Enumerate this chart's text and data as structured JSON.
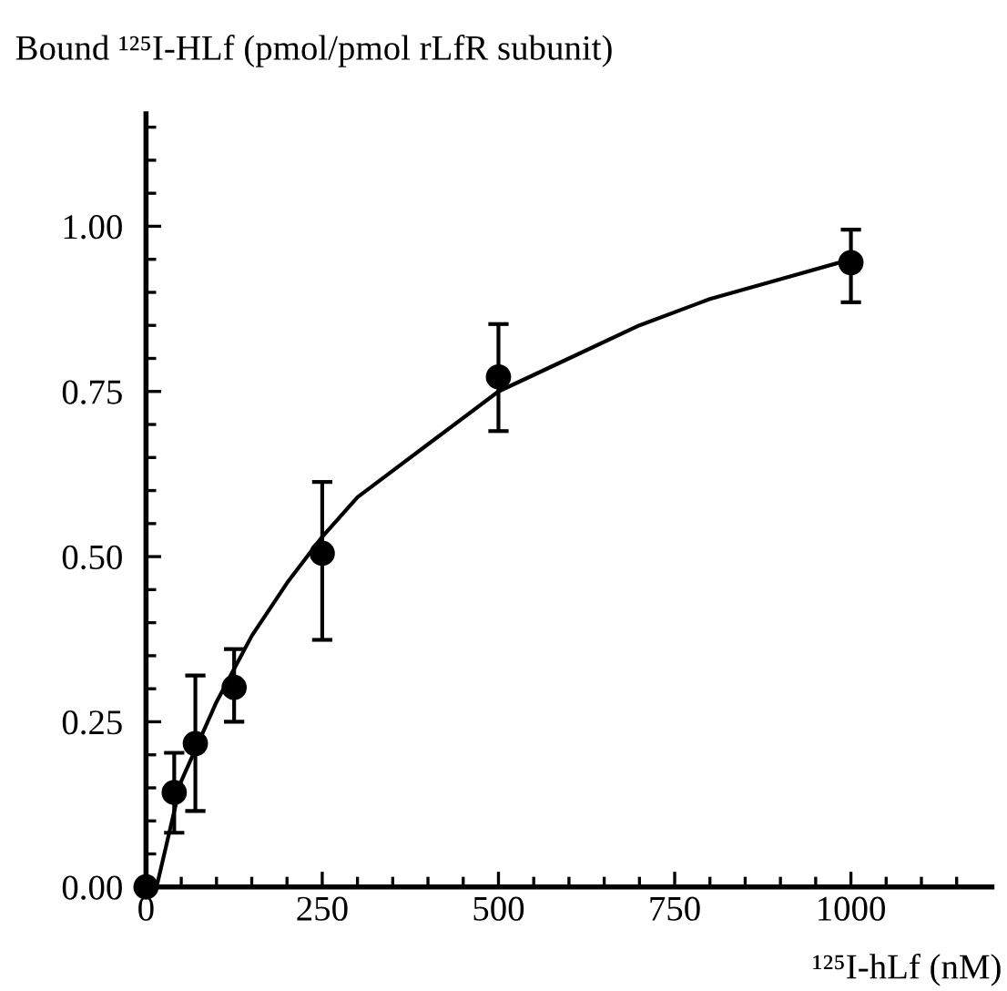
{
  "chart_data": {
    "type": "scatter",
    "xlabel": "¹²⁵I-hLf (nM)",
    "ylabel": "Bound ¹²⁵I-HLf (pmol/pmol rLfR subunit)",
    "series": [
      {
        "color": "#000000",
        "marker": "circle",
        "x": [
          0,
          40,
          70,
          125,
          250,
          500,
          1000
        ],
        "values": [
          0.0,
          0.143,
          0.217,
          0.302,
          0.505,
          0.772,
          0.945
        ],
        "errors": [
          null,
          [
            0.082,
            0.203
          ],
          [
            0.115,
            0.32
          ],
          [
            0.25,
            0.36
          ],
          [
            0.374,
            0.613
          ],
          [
            0.69,
            0.852
          ],
          [
            0.885,
            0.995
          ]
        ]
      },
      {
        "type": "line",
        "color": "#000000",
        "line_style": "solid",
        "x": [
          15,
          50,
          100,
          150,
          200,
          250,
          300,
          400,
          500,
          600,
          700,
          800,
          900,
          1000
        ],
        "values": [
          0.0,
          0.16,
          0.28,
          0.38,
          0.46,
          0.53,
          0.59,
          0.67,
          0.75,
          0.8,
          0.85,
          0.89,
          0.92,
          0.95
        ]
      }
    ],
    "xlim": [
      0,
      1200
    ],
    "ylim": [
      0,
      1.17
    ],
    "xticks": [
      0,
      {
        "value": 50,
        "label": null
      },
      {
        "value": 100,
        "label": null
      },
      {
        "value": 150,
        "label": null
      },
      {
        "value": 200,
        "label": null
      },
      250,
      {
        "value": 300,
        "label": null
      },
      {
        "value": 350,
        "label": null
      },
      {
        "value": 400,
        "label": null
      },
      {
        "value": 450,
        "label": null
      },
      500,
      {
        "value": 550,
        "label": null
      },
      {
        "value": 600,
        "label": null
      },
      {
        "value": 650,
        "label": null
      },
      {
        "value": 700,
        "label": null
      },
      750,
      {
        "value": 800,
        "label": null
      },
      {
        "value": 850,
        "label": null
      },
      {
        "value": 900,
        "label": null
      },
      {
        "value": 950,
        "label": null
      },
      1000,
      {
        "value": 1050,
        "label": null
      },
      {
        "value": 1100,
        "label": null
      },
      {
        "value": 1150,
        "label": null
      }
    ],
    "yticks": [
      {
        "value": 0,
        "label": "0.00"
      },
      {
        "value": 0.05,
        "label": null
      },
      {
        "value": 0.1,
        "label": null
      },
      {
        "value": 0.15,
        "label": null
      },
      {
        "value": 0.2,
        "label": null
      },
      0.25,
      {
        "value": 0.3,
        "label": null
      },
      {
        "value": 0.35,
        "label": null
      },
      {
        "value": 0.4,
        "label": null
      },
      {
        "value": 0.45,
        "label": null
      },
      {
        "value": 0.5,
        "label": "0.50"
      },
      {
        "value": 0.55,
        "label": null
      },
      {
        "value": 0.6,
        "label": null
      },
      {
        "value": 0.65,
        "label": null
      },
      {
        "value": 0.7,
        "label": null
      },
      0.75,
      {
        "value": 0.8,
        "label": null
      },
      {
        "value": 0.85,
        "label": null
      },
      {
        "value": 0.9,
        "label": null
      },
      {
        "value": 0.95,
        "label": null
      },
      {
        "value": 1.0,
        "label": "1.00"
      },
      {
        "value": 1.05,
        "label": null
      },
      {
        "value": 1.1,
        "label": null
      },
      {
        "value": 1.15,
        "label": null
      }
    ],
    "grid": false,
    "legend": false
  }
}
